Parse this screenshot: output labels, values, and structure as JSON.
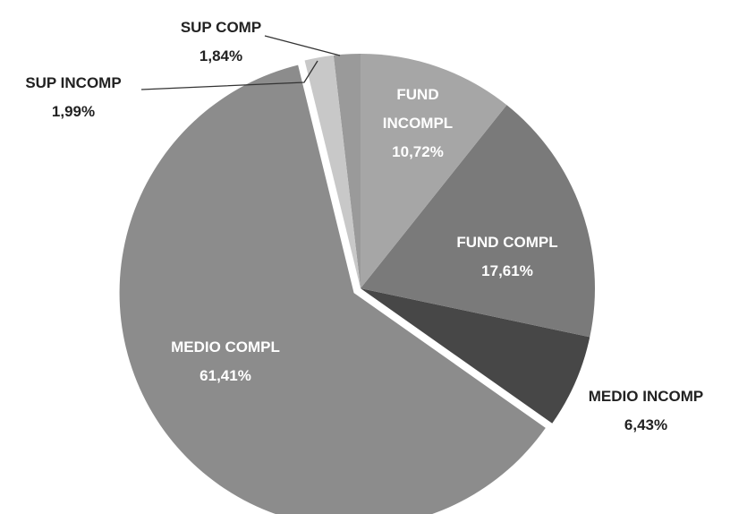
{
  "chart_data": {
    "type": "pie",
    "categories": [
      "FUND INCOMPL",
      "FUND COMPL",
      "MEDIO INCOMP",
      "MEDIO COMPL",
      "SUP INCOMP",
      "SUP COMP"
    ],
    "values": [
      10.72,
      17.61,
      6.43,
      61.41,
      1.99,
      1.84
    ],
    "value_labels": [
      "10,72%",
      "17,61%",
      "6,43%",
      "61,41%",
      "1,99%",
      "1,84%"
    ],
    "colors": [
      "#a6a6a6",
      "#7a7a7a",
      "#474747",
      "#8c8c8c",
      "#c8c8c8",
      "#9a9a9a"
    ]
  }
}
